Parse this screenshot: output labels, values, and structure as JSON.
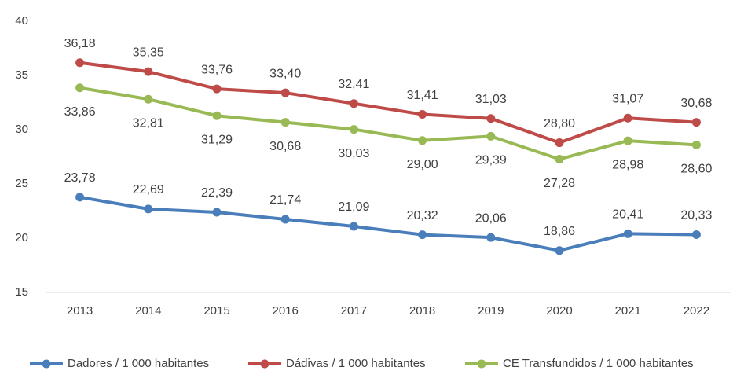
{
  "chart_data": {
    "type": "line",
    "categories": [
      "2013",
      "2014",
      "2015",
      "2016",
      "2017",
      "2018",
      "2019",
      "2020",
      "2021",
      "2022"
    ],
    "series": [
      {
        "name": "Dadores / 1 000 habitantes",
        "color": "#4a7ebb",
        "values": [
          23.78,
          22.69,
          22.39,
          21.74,
          21.09,
          20.32,
          20.06,
          18.86,
          20.41,
          20.33
        ],
        "value_labels": [
          "23,78",
          "22,69",
          "22,39",
          "21,74",
          "21,09",
          "20,32",
          "20,06",
          "18,86",
          "20,41",
          "20,33"
        ]
      },
      {
        "name": "Dádivas / 1 000 habitantes",
        "color": "#be4b48",
        "values": [
          36.18,
          35.35,
          33.76,
          33.4,
          32.41,
          31.41,
          31.03,
          28.8,
          31.07,
          30.68
        ],
        "value_labels": [
          "36,18",
          "35,35",
          "33,76",
          "33,40",
          "32,41",
          "31,41",
          "31,03",
          "28,80",
          "31,07",
          "30,68"
        ]
      },
      {
        "name": "CE Transfundidos / 1 000 habitantes",
        "color": "#98b954",
        "values": [
          33.86,
          32.81,
          31.29,
          30.68,
          30.03,
          29.0,
          29.39,
          27.28,
          28.98,
          28.6
        ],
        "value_labels": [
          "33,86",
          "32,81",
          "31,29",
          "30,68",
          "30,03",
          "29,00",
          "29,39",
          "27,28",
          "28,98",
          "28,60"
        ]
      }
    ],
    "ylim": [
      15,
      40
    ],
    "yticks": [
      15,
      20,
      25,
      30,
      35,
      40
    ],
    "grid": false,
    "legend": "bottom"
  }
}
